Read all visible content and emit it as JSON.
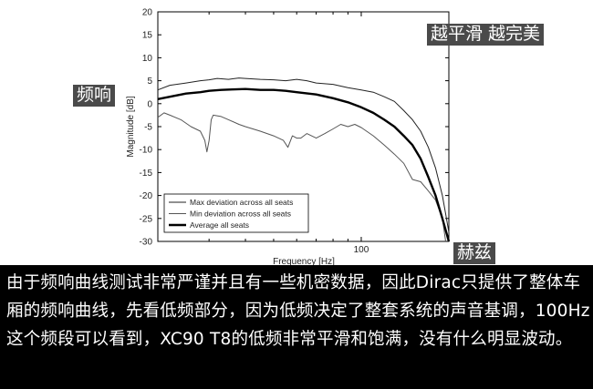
{
  "chart_data": {
    "type": "line",
    "title": "",
    "xlabel": "Frequency [Hz]",
    "ylabel": "Magnitude [dB]",
    "xscale": "log",
    "xlim": [
      20,
      200
    ],
    "ylim": [
      -30,
      20
    ],
    "x_ticks": [
      {
        "value": 100,
        "label": "100"
      }
    ],
    "y_ticks": [
      20,
      15,
      10,
      5,
      0,
      -5,
      -10,
      -15,
      -20,
      -25,
      -30
    ],
    "grid": false,
    "legend_position": "bottom-left",
    "series": [
      {
        "name": "Max deviation across all seats",
        "color": "#222222",
        "width": 1.0,
        "x": [
          20,
          22,
          25,
          28,
          30,
          32,
          35,
          38,
          40,
          45,
          50,
          55,
          60,
          65,
          70,
          80,
          90,
          100,
          110,
          120,
          130,
          140,
          150,
          160,
          170,
          180,
          190,
          195,
          200
        ],
        "y": [
          3,
          4,
          4.5,
          5,
          5.2,
          5.5,
          5.3,
          5.6,
          5.5,
          5.3,
          5.2,
          5.0,
          5.3,
          5.0,
          4.5,
          4.2,
          3.5,
          3.0,
          2.5,
          1.5,
          0.5,
          -1.5,
          -3.5,
          -6,
          -9.5,
          -14,
          -20,
          -24,
          -28
        ]
      },
      {
        "name": "Min deviation across all seats",
        "color": "#555555",
        "width": 1.0,
        "x": [
          20,
          21,
          22,
          24,
          26,
          28,
          29,
          29.5,
          30,
          30.5,
          31,
          33,
          35,
          38,
          40,
          45,
          50,
          54,
          56,
          58,
          60,
          62,
          65,
          70,
          75,
          80,
          85,
          90,
          95,
          100,
          110,
          120,
          130,
          140,
          150,
          160,
          170,
          180,
          190,
          195
        ],
        "y": [
          -3,
          -2,
          -2.5,
          -3.5,
          -5,
          -6,
          -8,
          -10.5,
          -8,
          -3.5,
          -2.5,
          -2.8,
          -3.5,
          -4.5,
          -5,
          -6,
          -7,
          -8,
          -9.5,
          -7,
          -7.5,
          -7.5,
          -6.5,
          -7.5,
          -6.5,
          -5.5,
          -4.5,
          -5,
          -4.5,
          -5.2,
          -7,
          -9,
          -11,
          -13,
          -16.5,
          -17,
          -19,
          -21,
          -25,
          -30
        ]
      },
      {
        "name": "Average all seats",
        "color": "#000000",
        "width": 2.4,
        "x": [
          20,
          22,
          25,
          28,
          30,
          33,
          36,
          40,
          45,
          50,
          55,
          60,
          70,
          80,
          90,
          100,
          110,
          120,
          130,
          140,
          150,
          160,
          170,
          180,
          190,
          200
        ],
        "y": [
          1,
          1.5,
          2.2,
          2.5,
          2.8,
          3.0,
          3.1,
          3.2,
          3.0,
          3.0,
          2.8,
          2.5,
          2.0,
          1.2,
          0.3,
          -0.8,
          -2,
          -3.5,
          -5,
          -7,
          -9,
          -12,
          -16,
          -20,
          -25,
          -30
        ]
      }
    ]
  },
  "overlays": {
    "smooth_tag": "越平滑 越完美",
    "frequency_response_tag": "频响",
    "hertz_tag": "赫兹"
  },
  "caption": "由于频响曲线测试非常严谨并且有一些机密数据，因此Dirac只提供了整体车厢的频响曲线，先看低频部分，因为低频决定了整套系统的声音基调，100Hz这个频段可以看到，XC90 T8的低频非常平滑和饱满，没有什么明显波动。"
}
